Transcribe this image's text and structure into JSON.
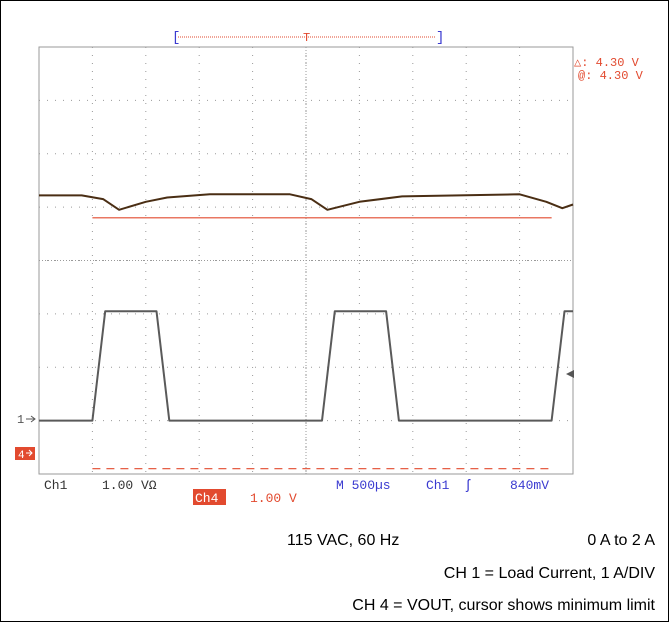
{
  "colors": {
    "ch1": "#5a5a5a",
    "ch4": "#4a2e14",
    "cursor": "#e24a2f",
    "readout": "#e24a2f",
    "timebase": "#3a3ad0",
    "grid": "#9a9a9a"
  },
  "cursor_readout": {
    "delta": "△: 4.30 V",
    "at": "@: 4.30 V"
  },
  "status": {
    "ch1_label": "Ch1",
    "ch1_scale": "1.00 VΩ",
    "ch4_label": "Ch4",
    "ch4_scale": "1.00 V",
    "timebase": "M 500µs",
    "trigger_source": "Ch1",
    "trigger_slope": "ʃ",
    "trigger_level": "840mV"
  },
  "markers": {
    "ch1": "1",
    "ch4": "4"
  },
  "trigger_bracket_label": "T",
  "captions": {
    "line1_left": "115 VAC, 60 Hz",
    "line1_right": "0 A to 2 A",
    "line2": "CH 1 = Load Current, 1 A/DIV",
    "line3": "CH 4 = VOUT, cursor shows minimum limit"
  },
  "chart_data": {
    "type": "line",
    "xlim": [
      0,
      5
    ],
    "ylim": [
      -4,
      4
    ],
    "grid": true,
    "series": [
      {
        "name": "Ch1",
        "x": [
          0,
          0.5,
          0.62,
          1.1,
          1.22,
          2.65,
          2.77,
          3.25,
          3.37,
          4.8,
          4.92,
          5
        ],
        "y": [
          -3.0,
          -3.0,
          -0.95,
          -0.95,
          -3.0,
          -3.0,
          -0.95,
          -0.95,
          -3.0,
          -3.0,
          -0.95,
          -0.95
        ]
      },
      {
        "name": "Ch4",
        "x": [
          0,
          0.4,
          0.6,
          0.75,
          1.0,
          1.2,
          1.6,
          2.35,
          2.55,
          2.7,
          3.0,
          3.4,
          4.5,
          4.75,
          4.9,
          5.0
        ],
        "y": [
          1.22,
          1.22,
          1.15,
          0.95,
          1.1,
          1.18,
          1.24,
          1.24,
          1.15,
          0.95,
          1.1,
          1.2,
          1.24,
          1.1,
          0.98,
          1.05
        ]
      }
    ],
    "cursor_levels": [
      {
        "channel": "Ch4",
        "y": 0.8,
        "style": "solid"
      },
      {
        "channel": "Ch4",
        "y": -3.9,
        "style": "dashed"
      }
    ]
  }
}
